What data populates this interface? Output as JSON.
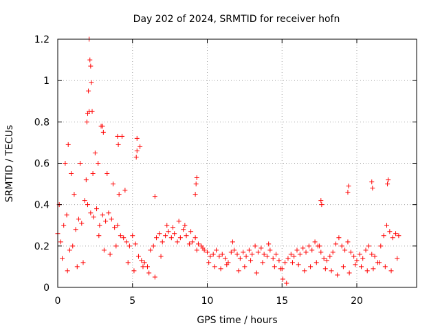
{
  "chart_data": {
    "type": "scatter",
    "title": "Day 202 of 2024, SRMTID for receiver hofn",
    "xlabel": "GPS time / hours",
    "ylabel": "SRMTID / TECUs",
    "xlim": [
      0,
      24
    ],
    "ylim": [
      0,
      1.2
    ],
    "x_ticks": [
      0,
      5,
      10,
      15,
      20
    ],
    "x_tick_labels": [
      "0",
      "5",
      "10",
      "15",
      "20"
    ],
    "y_ticks": [
      0,
      0.2,
      0.4,
      0.6,
      0.8,
      1.0,
      1.2
    ],
    "y_tick_labels": [
      "0",
      "0.2",
      "0.4",
      "0.6",
      "0.8",
      "1",
      "1.2"
    ],
    "grid": true,
    "marker": "+",
    "color": "#ff0000",
    "series": [
      {
        "name": "SRMTID",
        "x": [
          0.0,
          0.2,
          0.4,
          0.6,
          0.8,
          1.0,
          1.2,
          1.4,
          1.6,
          1.8,
          2.0,
          2.2,
          2.4,
          2.6,
          2.8,
          3.0,
          3.2,
          3.4,
          3.6,
          3.8,
          4.0,
          4.2,
          4.4,
          4.6,
          4.8,
          5.0,
          5.2,
          5.4,
          5.6,
          5.8,
          6.0,
          6.2,
          6.4,
          6.6,
          6.8,
          7.0,
          7.2,
          7.4,
          7.6,
          7.8,
          8.0,
          8.2,
          8.4,
          8.6,
          8.8,
          9.0,
          9.2,
          9.4,
          9.6,
          9.8,
          10.0,
          10.2,
          10.4,
          10.6,
          10.8,
          11.0,
          11.2,
          11.4,
          11.6,
          11.8,
          12.0,
          12.2,
          12.4,
          12.6,
          12.8,
          13.0,
          13.2,
          13.4,
          13.6,
          13.8,
          14.0,
          14.2,
          14.4,
          14.6,
          14.8,
          15.0,
          15.2,
          15.4,
          15.6,
          15.8,
          16.0,
          16.2,
          16.4,
          16.6,
          16.8,
          17.0,
          17.2,
          17.4,
          17.6,
          17.8,
          18.0,
          18.2,
          18.4,
          18.6,
          18.8,
          19.0,
          19.2,
          19.4,
          19.6,
          19.8,
          20.0,
          20.2,
          20.4,
          20.6,
          20.8,
          21.0,
          21.2,
          21.4,
          21.6,
          21.8,
          22.0,
          22.2,
          22.4,
          22.6,
          22.8,
          0.1,
          0.5,
          0.7,
          0.9,
          1.1,
          1.5,
          1.9,
          2.1,
          2.15,
          2.2,
          2.25,
          2.3,
          2.5,
          2.7,
          2.9,
          3.3,
          3.7,
          4.1,
          4.3,
          4.5,
          5.3,
          5.5,
          0.3,
          0.65,
          1.3,
          1.7,
          2.35,
          2.75,
          3.1,
          3.5,
          3.9,
          4.7,
          5.1,
          5.7,
          6.1,
          6.5,
          6.9,
          7.3,
          7.7,
          8.1,
          8.5,
          8.9,
          9.3,
          9.7,
          10.1,
          10.5,
          10.9,
          11.3,
          11.7,
          12.1,
          12.5,
          12.9,
          13.3,
          13.7,
          14.1,
          14.5,
          14.9,
          15.05,
          15.3,
          15.7,
          16.1,
          16.5,
          16.9,
          17.3,
          17.5,
          17.9,
          18.3,
          18.7,
          19.1,
          19.5,
          19.9,
          20.3,
          20.7,
          21.1,
          21.5,
          21.9,
          22.3,
          22.7,
          9.2,
          9.25,
          9.3,
          17.6,
          17.65,
          19.4,
          19.45,
          21.0,
          21.05,
          22.05,
          22.1,
          6.5,
          5.25,
          5.3,
          4.0,
          4.05,
          3.0,
          3.05,
          1.95,
          2.0,
          2.05,
          2.1
        ],
        "y": [
          0.26,
          0.22,
          0.3,
          0.35,
          0.18,
          0.2,
          0.28,
          0.33,
          0.31,
          0.42,
          0.4,
          0.36,
          0.34,
          0.38,
          0.3,
          0.35,
          0.32,
          0.36,
          0.33,
          0.29,
          0.3,
          0.25,
          0.24,
          0.22,
          0.2,
          0.25,
          0.21,
          0.15,
          0.13,
          0.12,
          0.1,
          0.18,
          0.2,
          0.24,
          0.26,
          0.22,
          0.25,
          0.27,
          0.24,
          0.26,
          0.22,
          0.24,
          0.28,
          0.25,
          0.21,
          0.22,
          0.24,
          0.21,
          0.2,
          0.18,
          0.17,
          0.15,
          0.16,
          0.18,
          0.15,
          0.16,
          0.14,
          0.12,
          0.17,
          0.18,
          0.16,
          0.14,
          0.17,
          0.15,
          0.18,
          0.16,
          0.2,
          0.17,
          0.19,
          0.16,
          0.15,
          0.18,
          0.14,
          0.16,
          0.13,
          0.09,
          0.12,
          0.14,
          0.16,
          0.15,
          0.18,
          0.16,
          0.19,
          0.17,
          0.2,
          0.18,
          0.22,
          0.2,
          0.17,
          0.14,
          0.13,
          0.15,
          0.17,
          0.21,
          0.24,
          0.2,
          0.18,
          0.22,
          0.17,
          0.15,
          0.13,
          0.16,
          0.14,
          0.18,
          0.2,
          0.16,
          0.15,
          0.12,
          0.2,
          0.25,
          0.3,
          0.27,
          0.24,
          0.26,
          0.25,
          0.4,
          0.6,
          0.69,
          0.55,
          0.45,
          0.6,
          0.52,
          0.85,
          1.1,
          1.07,
          0.99,
          0.85,
          0.65,
          0.6,
          0.78,
          0.55,
          0.5,
          0.45,
          0.73,
          0.47,
          0.72,
          0.68,
          0.14,
          0.08,
          0.1,
          0.12,
          0.55,
          0.25,
          0.18,
          0.16,
          0.2,
          0.12,
          0.08,
          0.1,
          0.07,
          0.05,
          0.15,
          0.3,
          0.29,
          0.32,
          0.3,
          0.27,
          0.18,
          0.19,
          0.12,
          0.1,
          0.09,
          0.11,
          0.22,
          0.08,
          0.1,
          0.13,
          0.07,
          0.12,
          0.21,
          0.1,
          0.09,
          0.04,
          0.02,
          0.12,
          0.11,
          0.08,
          0.1,
          0.12,
          0.2,
          0.09,
          0.08,
          0.06,
          0.1,
          0.07,
          0.11,
          0.1,
          0.08,
          0.09,
          0.12,
          0.1,
          0.08,
          0.14,
          0.45,
          0.5,
          0.53,
          0.42,
          0.4,
          0.46,
          0.49,
          0.51,
          0.48,
          0.5,
          0.52,
          0.44,
          0.63,
          0.66,
          0.73,
          0.69,
          0.78,
          0.75,
          0.8,
          0.84,
          0.95,
          1.2
        ]
      }
    ]
  }
}
